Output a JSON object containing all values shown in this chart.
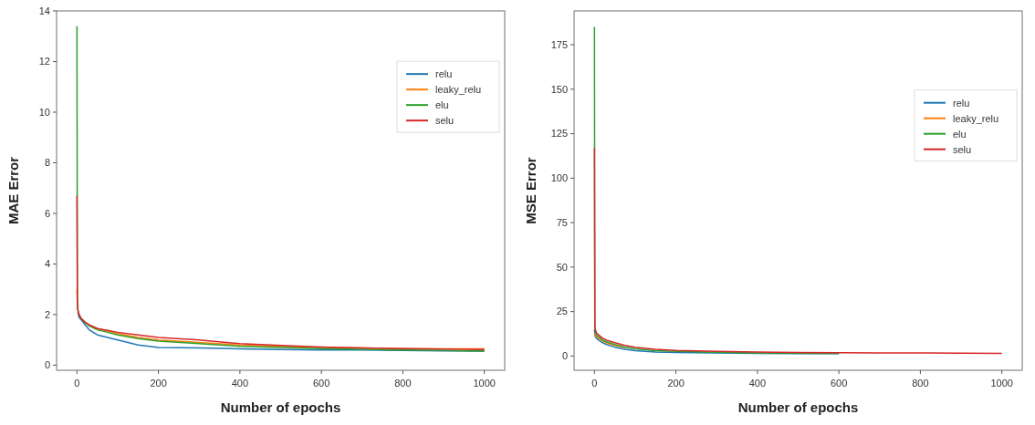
{
  "chart_data": [
    {
      "type": "line",
      "xlabel": "Number of epochs",
      "ylabel": "MAE Error",
      "x": [
        0,
        1,
        2,
        5,
        10,
        20,
        30,
        50,
        75,
        100,
        150,
        200,
        300,
        400,
        500,
        600,
        700,
        800,
        900,
        1000
      ],
      "xlim": [
        -50,
        1050
      ],
      "xticks": [
        0,
        200,
        400,
        600,
        800,
        1000
      ],
      "ylim": [
        -0.2,
        14
      ],
      "yticks": [
        0,
        2,
        4,
        6,
        8,
        10,
        12,
        14
      ],
      "legend": "top right",
      "grid": false,
      "series": [
        {
          "name": "relu",
          "color": "#1f77b4",
          "values": [
            null,
            null,
            2.1,
            1.9,
            1.8,
            1.6,
            1.4,
            1.2,
            1.1,
            1.0,
            0.8,
            0.7,
            0.68,
            0.65,
            0.62,
            0.6,
            0.6,
            0.58,
            0.57,
            0.56
          ]
        },
        {
          "name": "leaky_relu",
          "color": "#ff7f0e",
          "values": [
            3.0,
            2.4,
            2.2,
            2.0,
            1.85,
            1.7,
            1.6,
            1.45,
            1.35,
            1.25,
            1.1,
            1.0,
            0.9,
            0.8,
            0.75,
            0.7,
            0.68,
            0.66,
            0.65,
            0.65
          ]
        },
        {
          "name": "elu",
          "color": "#2ca02c",
          "values": [
            13.4,
            2.5,
            2.2,
            2.0,
            1.85,
            1.7,
            1.55,
            1.4,
            1.3,
            1.2,
            1.05,
            0.95,
            0.85,
            0.75,
            0.7,
            0.66,
            0.63,
            0.6,
            0.58,
            0.56
          ]
        },
        {
          "name": "selu",
          "color": "#d62728",
          "values": [
            6.7,
            2.5,
            2.2,
            2.0,
            1.85,
            1.7,
            1.6,
            1.45,
            1.38,
            1.3,
            1.2,
            1.1,
            1.0,
            0.85,
            0.78,
            0.72,
            0.68,
            0.66,
            0.64,
            0.62
          ]
        }
      ]
    },
    {
      "type": "line",
      "xlabel": "Number of epochs",
      "ylabel": "MSE Error",
      "x": [
        0,
        1,
        2,
        5,
        10,
        20,
        30,
        50,
        75,
        100,
        150,
        200,
        300,
        400,
        500,
        600,
        700,
        800,
        900,
        1000
      ],
      "xlim": [
        -50,
        1050
      ],
      "xticks": [
        0,
        200,
        400,
        600,
        800,
        1000
      ],
      "ylim": [
        -8,
        194
      ],
      "yticks": [
        0,
        25,
        50,
        75,
        100,
        125,
        150,
        175
      ],
      "legend": "right",
      "grid": false,
      "series": [
        {
          "name": "relu",
          "color": "#1f77b4",
          "values": [
            15,
            12,
            11,
            10,
            9,
            7.5,
            6.5,
            5,
            3.8,
            3,
            2.3,
            2,
            1.7,
            1.5,
            1.4,
            1.3,
            null,
            null,
            null,
            null
          ]
        },
        {
          "name": "leaky_relu",
          "color": "#ff7f0e",
          "values": [
            null,
            13,
            12,
            11,
            10,
            8.5,
            7.5,
            6,
            4.8,
            null,
            null,
            null,
            null,
            null,
            null,
            null,
            null,
            null,
            null,
            null
          ]
        },
        {
          "name": "elu",
          "color": "#2ca02c",
          "values": [
            185,
            16,
            14,
            12,
            11,
            9,
            8,
            6.5,
            5,
            4,
            3,
            2.6,
            2.1,
            1.8,
            1.6,
            1.5,
            null,
            null,
            null,
            null
          ]
        },
        {
          "name": "selu",
          "color": "#d62728",
          "values": [
            117,
            17,
            15,
            13,
            12,
            10,
            9,
            7.5,
            6,
            5,
            3.8,
            3.2,
            2.6,
            2.3,
            2,
            1.9,
            1.8,
            1.7,
            1.6,
            1.5
          ]
        }
      ]
    }
  ]
}
